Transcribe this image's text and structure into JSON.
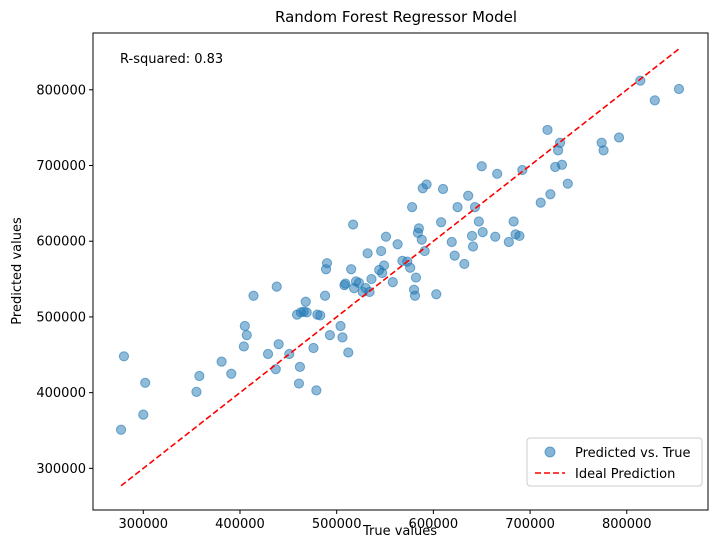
{
  "chart_data": {
    "type": "scatter",
    "title": "Random Forest Regressor Model",
    "xlabel": "True values",
    "ylabel": "Predicted values",
    "annotation": "R-squared: 0.83",
    "xlim": [
      248000,
      884000
    ],
    "ylim": [
      245000,
      875000
    ],
    "xticks": [
      300000,
      400000,
      500000,
      600000,
      700000,
      800000
    ],
    "yticks": [
      300000,
      400000,
      500000,
      600000,
      700000,
      800000
    ],
    "grid": false,
    "legend_position": "lower-right",
    "series": [
      {
        "name": "Predicted vs. True",
        "kind": "scatter",
        "color": "#1f77b4",
        "x": [
          277000,
          280000,
          300000,
          302000,
          355000,
          358000,
          381000,
          391000,
          404000,
          405000,
          407000,
          414000,
          429000,
          437000,
          438000,
          440000,
          451000,
          459000,
          461000,
          462000,
          463000,
          466000,
          468000,
          469000,
          476000,
          479000,
          480000,
          483000,
          488000,
          489000,
          490000,
          493000,
          504000,
          506000,
          508000,
          509000,
          512000,
          515000,
          517000,
          518000,
          520000,
          523000,
          527000,
          530000,
          532000,
          534000,
          536000,
          544000,
          546000,
          547000,
          549000,
          551000,
          558000,
          563000,
          568000,
          573000,
          576000,
          578000,
          580000,
          581000,
          582000,
          584000,
          585000,
          588000,
          589000,
          591000,
          593000,
          603000,
          608000,
          610000,
          619000,
          622000,
          625000,
          632000,
          636000,
          640000,
          641000,
          643000,
          647000,
          650000,
          651000,
          664000,
          666000,
          678000,
          683000,
          685000,
          689000,
          692000,
          711000,
          718000,
          721000,
          726000,
          729000,
          731000,
          733000,
          739000,
          774000,
          776000,
          792000,
          814000,
          829000,
          854000
        ],
        "y": [
          351000,
          448000,
          371000,
          413000,
          401000,
          422000,
          441000,
          425000,
          461000,
          488000,
          476000,
          528000,
          451000,
          431000,
          540000,
          464000,
          451000,
          503000,
          412000,
          434000,
          506000,
          507000,
          520000,
          506000,
          459000,
          403000,
          503000,
          502000,
          528000,
          563000,
          571000,
          476000,
          488000,
          473000,
          542000,
          544000,
          453000,
          563000,
          622000,
          538000,
          547000,
          545000,
          533000,
          538000,
          584000,
          533000,
          550000,
          562000,
          587000,
          558000,
          568000,
          606000,
          546000,
          596000,
          574000,
          573000,
          565000,
          645000,
          536000,
          528000,
          552000,
          611000,
          617000,
          602000,
          670000,
          587000,
          675000,
          530000,
          625000,
          669000,
          599000,
          581000,
          645000,
          570000,
          660000,
          607000,
          593000,
          645000,
          626000,
          699000,
          612000,
          606000,
          689000,
          599000,
          626000,
          609000,
          607000,
          694000,
          651000,
          747000,
          662000,
          698000,
          720000,
          730000,
          701000,
          676000,
          730000,
          720000,
          737000,
          812000,
          786000,
          801000
        ]
      },
      {
        "name": "Ideal Prediction",
        "kind": "line",
        "style": "dashed",
        "color": "#ff0000",
        "x": [
          277000,
          855000
        ],
        "y": [
          277000,
          855000
        ]
      }
    ]
  }
}
